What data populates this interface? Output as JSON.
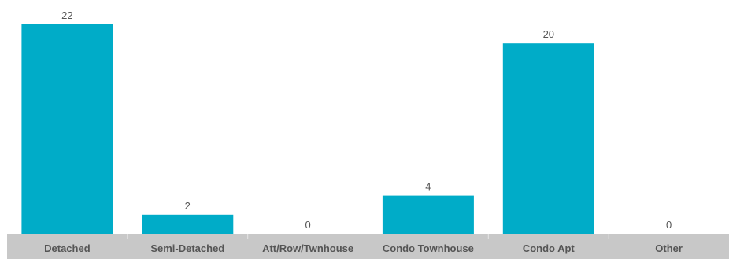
{
  "chart_data": {
    "type": "bar",
    "categories": [
      "Detached",
      "Semi-Detached",
      "Att/Row/Twnhouse",
      "Condo Townhouse",
      "Condo Apt",
      "Other"
    ],
    "values": [
      22,
      2,
      0,
      4,
      20,
      0
    ],
    "title": "",
    "xlabel": "",
    "ylabel": "",
    "ylim": [
      0,
      22
    ],
    "grid": false,
    "bar_color": "#00acc8",
    "axis_band_color": "#c8c8c8"
  }
}
